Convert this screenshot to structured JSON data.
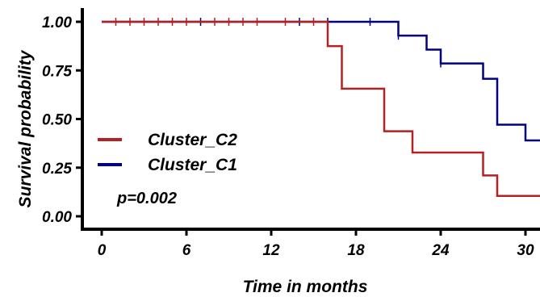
{
  "chart_data": {
    "type": "line",
    "subtype": "kaplan-meier-step",
    "xlabel": "Time in months",
    "ylabel": "Survival probability",
    "xlim": [
      -1.5,
      32
    ],
    "ylim": [
      0,
      1.05
    ],
    "xticks": [
      0,
      6,
      12,
      18,
      24,
      30
    ],
    "yticks": [
      0.0,
      0.25,
      0.5,
      0.75,
      1.0
    ],
    "ytick_labels": [
      "0.00",
      "0.25",
      "0.50",
      "0.75",
      "1.00"
    ],
    "legend_position": "left-middle",
    "annotation": "p=0.002",
    "series": [
      {
        "name": "Cluster_C2",
        "color": "#b22222",
        "steps": [
          [
            0,
            1.0
          ],
          [
            16,
            0.875
          ],
          [
            17,
            0.656
          ],
          [
            20,
            0.437
          ],
          [
            22,
            0.328
          ],
          [
            27,
            0.21
          ],
          [
            28,
            0.105
          ],
          [
            32,
            0.105
          ]
        ],
        "censored": [
          [
            1,
            1.0
          ],
          [
            2,
            1.0
          ],
          [
            3,
            1.0
          ],
          [
            4,
            1.0
          ],
          [
            5,
            1.0
          ],
          [
            6,
            1.0
          ],
          [
            8,
            1.0
          ],
          [
            9,
            1.0
          ],
          [
            10,
            1.0
          ],
          [
            11,
            1.0
          ],
          [
            13,
            1.0
          ],
          [
            15,
            1.0
          ]
        ]
      },
      {
        "name": "Cluster_C1",
        "color": "#000080",
        "steps": [
          [
            0,
            1.0
          ],
          [
            21,
            0.929
          ],
          [
            23,
            0.857
          ],
          [
            24,
            0.786
          ],
          [
            27,
            0.707
          ],
          [
            28,
            0.471
          ],
          [
            30,
            0.39
          ],
          [
            32,
            0.39
          ]
        ],
        "censored": [
          [
            7,
            1.0
          ],
          [
            14,
            1.0
          ],
          [
            16,
            1.0
          ],
          [
            19,
            1.0
          ],
          [
            21,
            0.929
          ],
          [
            24,
            0.786
          ]
        ]
      }
    ]
  }
}
